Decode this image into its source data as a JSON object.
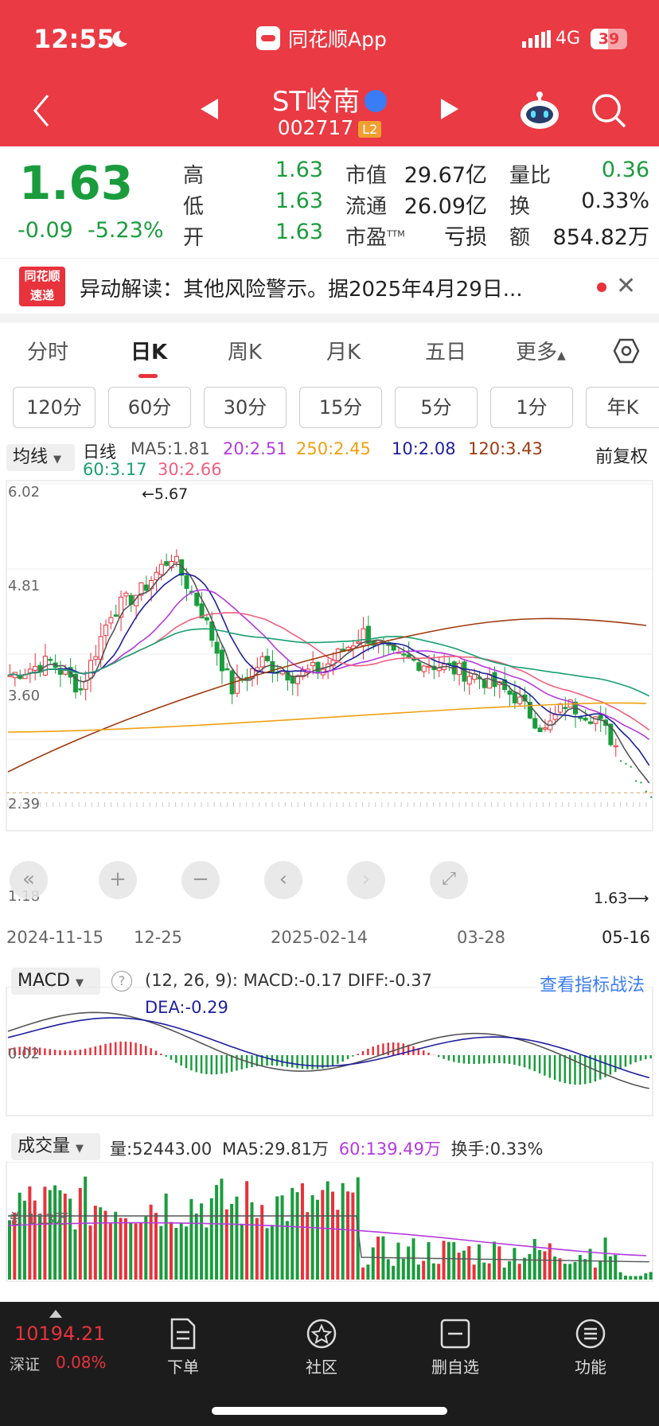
{
  "status": {
    "time": "12:55",
    "net": "4G",
    "battery": "39"
  },
  "header": {
    "app_name": "同花顺App",
    "stock_name": "ST岭南",
    "stock_code": "002717",
    "level": "L2"
  },
  "quote": {
    "price": "1.63",
    "change": "-0.09",
    "change_pct": "-5.23%",
    "high_label": "高",
    "high": "1.63",
    "low_label": "低",
    "low": "1.63",
    "open_label": "开",
    "open": "1.63",
    "mcap_label": "市值",
    "mcap": "29.67亿",
    "float_label": "流通",
    "float": "26.09亿",
    "pe_label": "市盈",
    "pe_sup": "TTM",
    "pe": "亏损",
    "vr_label": "量比",
    "vr": "0.36",
    "turnover_label": "换",
    "turnover": "0.33%",
    "amount_label": "额",
    "amount": "854.82万"
  },
  "news": {
    "logo_line1": "同花顺",
    "logo_line2": "速递",
    "text": "异动解读：其他风险警示。据2025年4月29日..."
  },
  "tabs": [
    "分时",
    "日K",
    "周K",
    "月K",
    "五日",
    "更多"
  ],
  "periods": [
    "120分",
    "60分",
    "30分",
    "15分",
    "5分",
    "1分",
    "年K"
  ],
  "ma": {
    "select": "均线",
    "kind": "日线",
    "ma5": "MA5:1.81",
    "ma20": "20:2.51",
    "ma250": "250:2.45",
    "ma10": "10:2.08",
    "ma120": "120:3.43",
    "ma60": "60:3.17",
    "ma30": "30:2.66",
    "adjust": "前复权"
  },
  "price_axis": [
    "6.02",
    "4.81",
    "3.60",
    "2.39",
    "1.18"
  ],
  "max_marker": "←5.67",
  "last_marker": "1.63⟶",
  "dates": [
    "2024-11-15",
    "12-25",
    "2025-02-14",
    "03-28",
    "05-16"
  ],
  "macd": {
    "select": "MACD",
    "params": "(12, 26, 9):",
    "macd": "MACD:-0.17",
    "diff": "DIFF:-0.37",
    "dea": "DEA:-0.29",
    "link": "查看指标战法",
    "axis": "0.02"
  },
  "volume": {
    "select": "成交量",
    "vol": "量:52443.00",
    "ma5": "MA5:29.81万",
    "ma60": "60:139.49万",
    "turnover": "换手:0.33%",
    "axis": "总:113万"
  },
  "colors": {
    "up": "#e8323c",
    "down": "#1a9c3d",
    "ma5": "#555555",
    "ma10": "#1f1fa0",
    "ma20": "#b43ae0",
    "ma30": "#f06080",
    "ma60": "#18a070",
    "ma120": "#a03a10",
    "ma250": "#f0a010"
  },
  "bottom": {
    "index_value": "10194.21",
    "index_name": "深证",
    "index_pct": "0.08%",
    "nav": [
      "下单",
      "社区",
      "删自选",
      "功能"
    ]
  }
}
